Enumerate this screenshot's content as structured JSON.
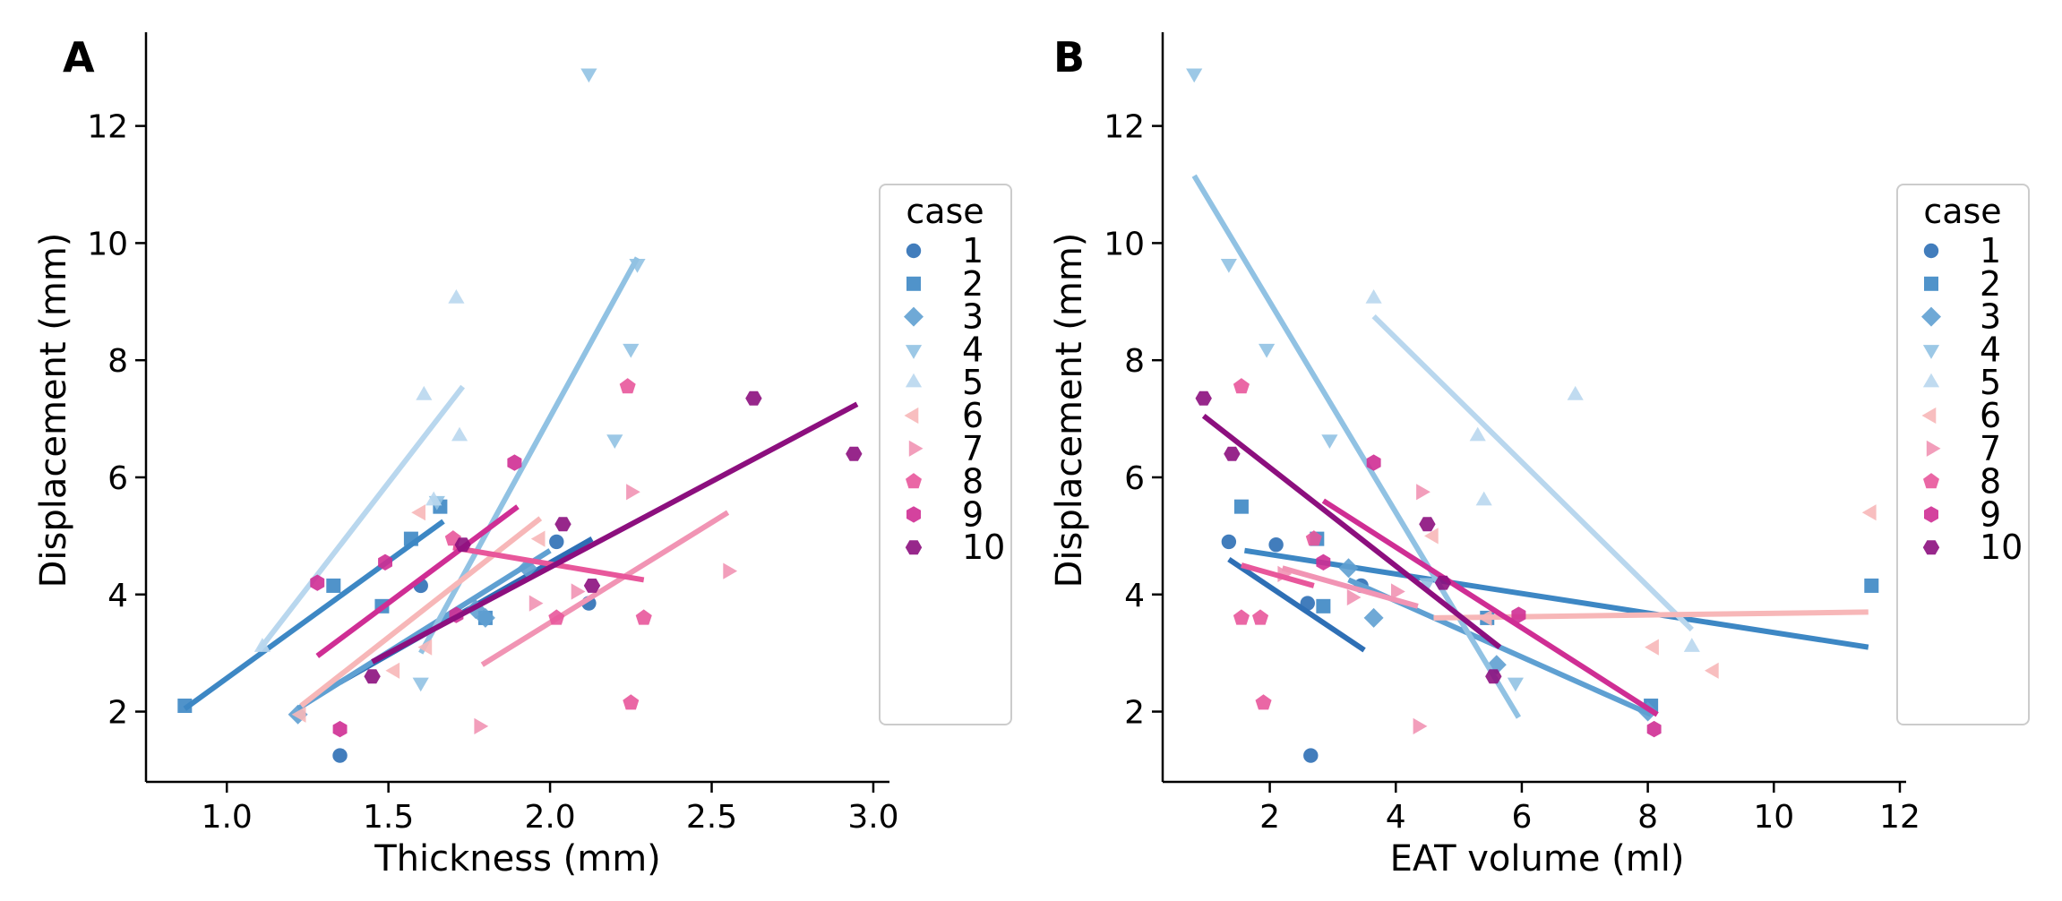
{
  "chart_data": [
    {
      "type": "scatter",
      "panel_label": "A",
      "title": "",
      "xlabel": "Thickness (mm)",
      "ylabel": "Displacement (mm)",
      "xlim": [
        0.75,
        3.05
      ],
      "ylim": [
        0.8,
        13.6
      ],
      "xticks": [
        1.0,
        1.5,
        2.0,
        2.5,
        3.0
      ],
      "xtick_labels": [
        "1.0",
        "1.5",
        "2.0",
        "2.5",
        "3.0"
      ],
      "yticks": [
        2,
        4,
        6,
        8,
        10,
        12
      ],
      "ytick_labels": [
        "2",
        "4",
        "6",
        "8",
        "10",
        "12"
      ],
      "grid": false,
      "legend": {
        "title": "case",
        "placement": "right"
      },
      "series": [
        {
          "name": "1",
          "color": "#2e6fb5",
          "marker": "circle",
          "points": [
            [
              1.35,
              1.25
            ],
            [
              1.6,
              4.15
            ],
            [
              2.02,
              4.9
            ],
            [
              2.12,
              3.85
            ]
          ],
          "fit": [
            [
              1.35,
              2.5
            ],
            [
              2.13,
              4.95
            ]
          ]
        },
        {
          "name": "2",
          "color": "#3d87c4",
          "marker": "square",
          "points": [
            [
              0.87,
              2.1
            ],
            [
              1.33,
              4.15
            ],
            [
              1.48,
              3.8
            ],
            [
              1.57,
              4.95
            ],
            [
              1.66,
              5.5
            ],
            [
              1.8,
              3.6
            ]
          ],
          "fit": [
            [
              0.87,
              2.05
            ],
            [
              1.67,
              5.25
            ]
          ]
        },
        {
          "name": "3",
          "color": "#5fa0d2",
          "marker": "diamond",
          "points": [
            [
              1.22,
              1.95
            ],
            [
              1.8,
              3.6
            ],
            [
              1.93,
              4.45
            ],
            [
              1.77,
              3.75
            ]
          ],
          "fit": [
            [
              1.22,
              2.05
            ],
            [
              2.0,
              4.75
            ]
          ]
        },
        {
          "name": "4",
          "color": "#91c2e3",
          "marker": "triangle-down",
          "points": [
            [
              2.12,
              12.9
            ],
            [
              2.27,
              9.65
            ],
            [
              2.25,
              8.2
            ],
            [
              2.2,
              6.65
            ],
            [
              1.6,
              2.5
            ],
            [
              1.65,
              5.6
            ]
          ],
          "fit": [
            [
              1.6,
              3.0
            ],
            [
              2.27,
              9.75
            ]
          ]
        },
        {
          "name": "5",
          "color": "#b9d7ee",
          "marker": "triangle-up",
          "points": [
            [
              1.11,
              3.1
            ],
            [
              1.61,
              7.4
            ],
            [
              1.71,
              9.05
            ],
            [
              1.72,
              6.7
            ],
            [
              1.64,
              5.6
            ]
          ],
          "fit": [
            [
              1.1,
              3.05
            ],
            [
              1.73,
              7.55
            ]
          ]
        },
        {
          "name": "6",
          "color": "#f7b7b8",
          "marker": "triangle-left",
          "points": [
            [
              1.23,
              1.95
            ],
            [
              1.52,
              2.7
            ],
            [
              1.62,
              3.1
            ],
            [
              1.6,
              5.4
            ],
            [
              1.97,
              4.95
            ]
          ],
          "fit": [
            [
              1.23,
              2.1
            ],
            [
              1.97,
              5.3
            ]
          ]
        },
        {
          "name": "7",
          "color": "#f194b4",
          "marker": "triangle-right",
          "points": [
            [
              1.78,
              1.75
            ],
            [
              1.95,
              3.85
            ],
            [
              2.08,
              4.05
            ],
            [
              2.25,
              5.75
            ],
            [
              2.55,
              4.4
            ]
          ],
          "fit": [
            [
              1.79,
              2.8
            ],
            [
              2.55,
              5.4
            ]
          ]
        },
        {
          "name": "8",
          "color": "#e8579b",
          "marker": "pentagon",
          "points": [
            [
              1.7,
              4.95
            ],
            [
              2.02,
              3.6
            ],
            [
              2.24,
              7.55
            ],
            [
              2.25,
              2.15
            ],
            [
              2.29,
              3.6
            ]
          ],
          "fit": [
            [
              1.7,
              4.8
            ],
            [
              2.29,
              4.25
            ]
          ]
        },
        {
          "name": "9",
          "color": "#cf2e94",
          "marker": "hexagon-v",
          "points": [
            [
              1.28,
              4.2
            ],
            [
              1.35,
              1.7
            ],
            [
              1.49,
              4.55
            ],
            [
              1.71,
              3.65
            ],
            [
              1.89,
              6.25
            ]
          ],
          "fit": [
            [
              1.28,
              2.95
            ],
            [
              1.9,
              5.5
            ]
          ]
        },
        {
          "name": "10",
          "color": "#8c0f7e",
          "marker": "hexagon-h",
          "points": [
            [
              1.45,
              2.6
            ],
            [
              1.73,
              4.85
            ],
            [
              2.04,
              5.2
            ],
            [
              2.13,
              4.15
            ],
            [
              2.63,
              7.35
            ],
            [
              2.94,
              6.4
            ]
          ],
          "fit": [
            [
              1.45,
              2.85
            ],
            [
              2.95,
              7.25
            ]
          ]
        }
      ]
    },
    {
      "type": "scatter",
      "panel_label": "B",
      "title": "",
      "xlabel": "EAT volume (ml)",
      "ylabel": "Displacement (mm)",
      "xlim": [
        0.3,
        12.1
      ],
      "ylim": [
        0.8,
        13.6
      ],
      "xticks": [
        2,
        4,
        6,
        8,
        10,
        12
      ],
      "xtick_labels": [
        "2",
        "4",
        "6",
        "8",
        "10",
        "12"
      ],
      "yticks": [
        2,
        4,
        6,
        8,
        10,
        12
      ],
      "ytick_labels": [
        "2",
        "4",
        "6",
        "8",
        "10",
        "12"
      ],
      "grid": false,
      "legend": {
        "title": "case",
        "placement": "right"
      },
      "series": [
        {
          "name": "1",
          "color": "#2e6fb5",
          "marker": "circle",
          "points": [
            [
              1.35,
              4.9
            ],
            [
              2.1,
              4.85
            ],
            [
              2.6,
              3.85
            ],
            [
              2.65,
              1.25
            ],
            [
              3.45,
              4.15
            ]
          ],
          "fit": [
            [
              1.35,
              4.6
            ],
            [
              3.5,
              3.05
            ]
          ]
        },
        {
          "name": "2",
          "color": "#3d87c4",
          "marker": "square",
          "points": [
            [
              1.55,
              5.5
            ],
            [
              2.75,
              4.95
            ],
            [
              2.85,
              3.8
            ],
            [
              5.45,
              3.6
            ],
            [
              8.05,
              2.1
            ],
            [
              11.55,
              4.15
            ]
          ],
          "fit": [
            [
              1.6,
              4.75
            ],
            [
              11.5,
              3.1
            ]
          ]
        },
        {
          "name": "3",
          "color": "#5fa0d2",
          "marker": "diamond",
          "points": [
            [
              3.25,
              4.45
            ],
            [
              3.65,
              3.6
            ],
            [
              5.6,
              2.8
            ],
            [
              8.0,
              2.0
            ]
          ],
          "fit": [
            [
              3.25,
              4.25
            ],
            [
              8.05,
              1.95
            ]
          ]
        },
        {
          "name": "4",
          "color": "#91c2e3",
          "marker": "triangle-down",
          "points": [
            [
              0.8,
              12.9
            ],
            [
              1.35,
              9.65
            ],
            [
              1.95,
              8.2
            ],
            [
              2.95,
              6.65
            ],
            [
              5.9,
              2.5
            ],
            [
              4.5,
              4.2
            ]
          ],
          "fit": [
            [
              0.8,
              11.15
            ],
            [
              5.95,
              1.9
            ]
          ]
        },
        {
          "name": "5",
          "color": "#b9d7ee",
          "marker": "triangle-up",
          "points": [
            [
              3.65,
              9.05
            ],
            [
              5.3,
              6.7
            ],
            [
              5.4,
              5.6
            ],
            [
              6.85,
              7.4
            ],
            [
              8.7,
              3.1
            ]
          ],
          "fit": [
            [
              3.65,
              8.75
            ],
            [
              8.7,
              3.4
            ]
          ]
        },
        {
          "name": "6",
          "color": "#f7b7b8",
          "marker": "triangle-left",
          "points": [
            [
              4.6,
              5.0
            ],
            [
              8.1,
              3.1
            ],
            [
              9.05,
              2.7
            ],
            [
              11.55,
              5.4
            ],
            [
              5.45,
              3.6
            ]
          ],
          "fit": [
            [
              4.6,
              3.6
            ],
            [
              11.5,
              3.7
            ]
          ]
        },
        {
          "name": "7",
          "color": "#f194b4",
          "marker": "triangle-right",
          "points": [
            [
              2.2,
              4.35
            ],
            [
              4.0,
              4.05
            ],
            [
              4.35,
              1.75
            ],
            [
              4.4,
              5.75
            ],
            [
              3.3,
              3.95
            ]
          ],
          "fit": [
            [
              2.2,
              4.45
            ],
            [
              4.35,
              3.8
            ]
          ]
        },
        {
          "name": "8",
          "color": "#e8579b",
          "marker": "pentagon",
          "points": [
            [
              1.55,
              7.55
            ],
            [
              1.55,
              3.6
            ],
            [
              1.85,
              3.6
            ],
            [
              1.9,
              2.15
            ],
            [
              2.7,
              4.95
            ]
          ],
          "fit": [
            [
              1.55,
              4.5
            ],
            [
              2.7,
              4.15
            ]
          ]
        },
        {
          "name": "9",
          "color": "#cf2e94",
          "marker": "hexagon-v",
          "points": [
            [
              2.85,
              4.55
            ],
            [
              3.65,
              6.25
            ],
            [
              5.95,
              3.65
            ],
            [
              8.1,
              1.7
            ]
          ],
          "fit": [
            [
              2.85,
              5.6
            ],
            [
              8.15,
              1.95
            ]
          ]
        },
        {
          "name": "10",
          "color": "#8c0f7e",
          "marker": "hexagon-h",
          "points": [
            [
              0.95,
              7.35
            ],
            [
              1.4,
              6.4
            ],
            [
              4.5,
              5.2
            ],
            [
              4.75,
              4.2
            ],
            [
              5.55,
              2.6
            ]
          ],
          "fit": [
            [
              0.95,
              7.05
            ],
            [
              5.65,
              3.1
            ]
          ]
        }
      ]
    }
  ]
}
